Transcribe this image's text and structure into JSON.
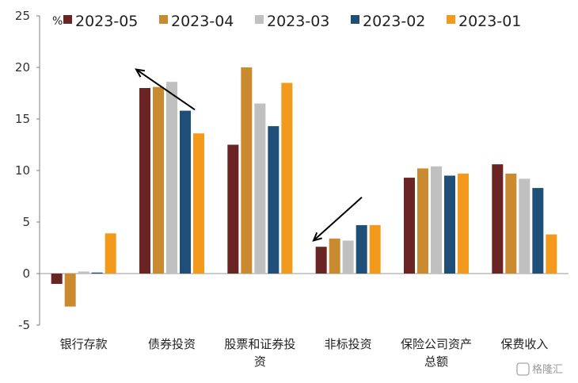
{
  "chart_data": {
    "type": "bar",
    "unit_label": "%",
    "categories": [
      [
        "银行存款"
      ],
      [
        "债券投资"
      ],
      [
        "股票和证券投",
        "资"
      ],
      [
        "非标投资"
      ],
      [
        "保险公司资产",
        "总额"
      ],
      [
        "保费收入"
      ]
    ],
    "series": [
      {
        "name": "2023-05",
        "color": "#6b2424",
        "values": [
          -1.0,
          18.0,
          12.5,
          2.6,
          9.3,
          10.6
        ]
      },
      {
        "name": "2023-04",
        "color": "#c98a30",
        "values": [
          -3.2,
          18.1,
          20.0,
          3.4,
          10.2,
          9.7
        ]
      },
      {
        "name": "2023-03",
        "color": "#c0c0c0",
        "values": [
          0.2,
          18.6,
          16.5,
          3.2,
          10.4,
          9.2
        ]
      },
      {
        "name": "2023-02",
        "color": "#1f4e79",
        "values": [
          0.1,
          15.8,
          14.3,
          4.7,
          9.5,
          8.3
        ]
      },
      {
        "name": "2023-01",
        "color": "#f39a1c",
        "values": [
          3.9,
          13.6,
          18.5,
          4.7,
          9.7,
          3.8
        ]
      }
    ],
    "ylim": [
      -5,
      25
    ],
    "yticks": [
      -5,
      0,
      5,
      10,
      15,
      20,
      25
    ],
    "grid": false,
    "legend_position": "top"
  },
  "annotations": {
    "arrow_color": "#000000",
    "arrows": [
      {
        "from_category": "债券投资",
        "to_category": "债券投资",
        "from_value": 15.9,
        "to_value": 19.8
      },
      {
        "from_category": "非标投资",
        "to_category": "非标投资",
        "from_value": 7.4,
        "to_value": 3.2
      }
    ]
  },
  "watermark": {
    "text": "格隆汇"
  }
}
